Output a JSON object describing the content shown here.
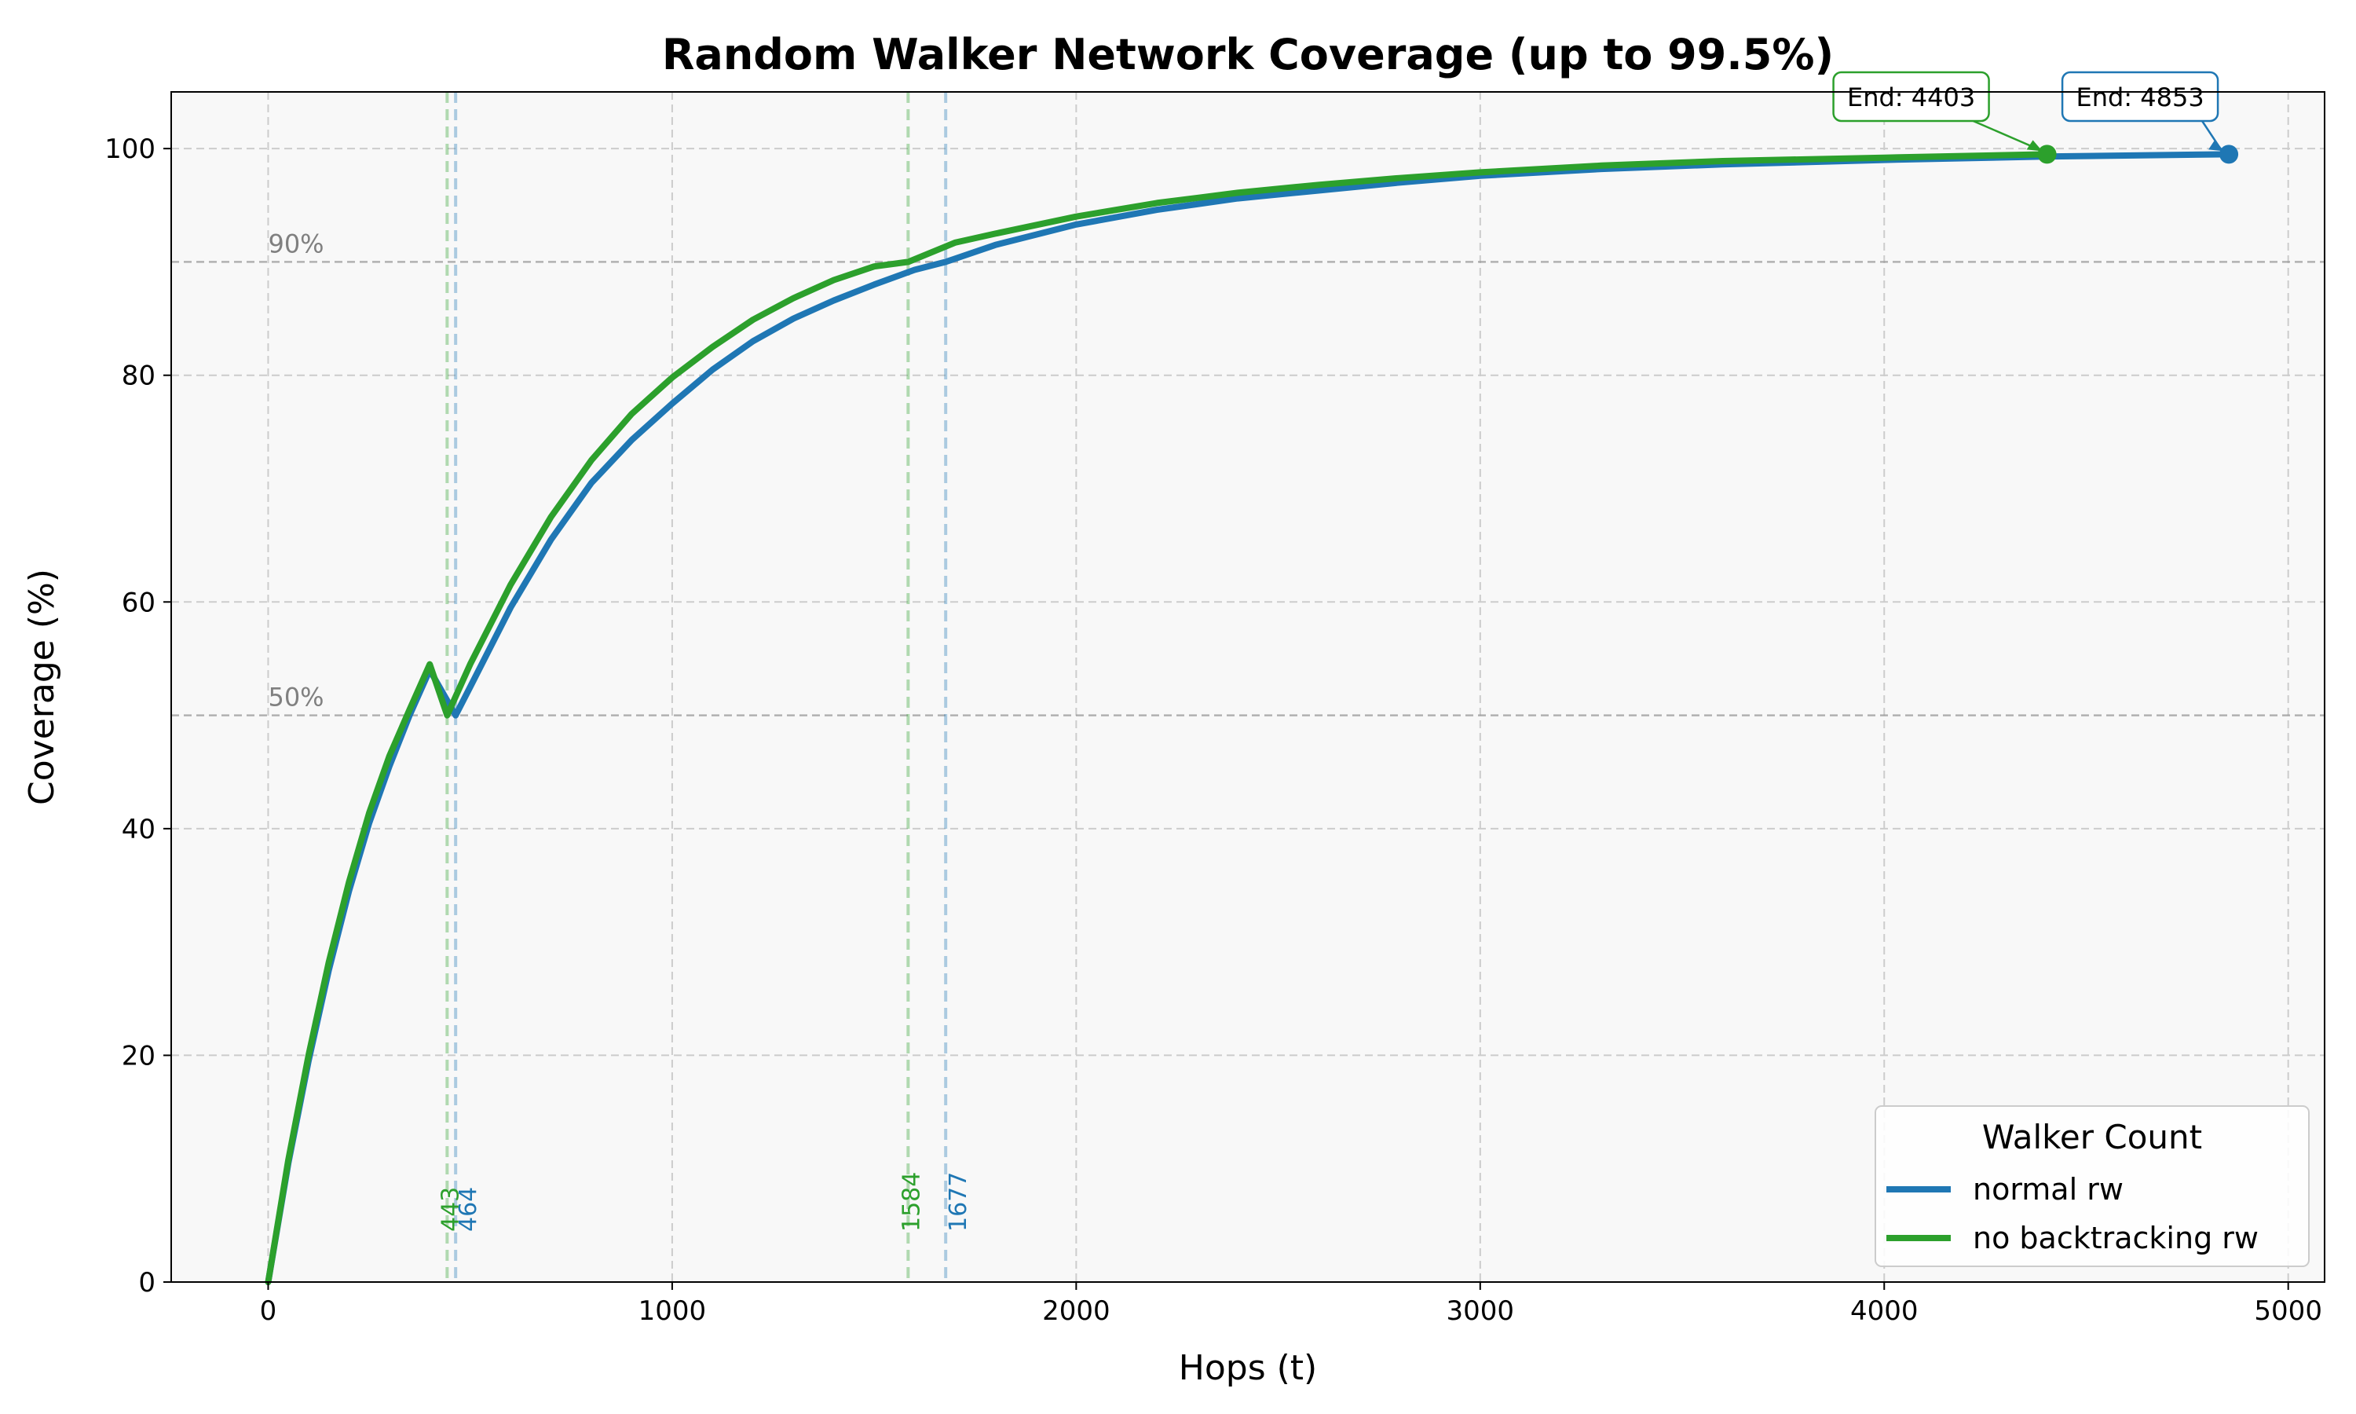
{
  "chart_data": {
    "type": "line",
    "title": "Random Walker Network Coverage (up to 99.5%)",
    "xlabel": "Hops (t)",
    "ylabel": "Coverage (%)",
    "xlim": [
      -240,
      5090
    ],
    "ylim": [
      0,
      105
    ],
    "xticks": [
      0,
      1000,
      2000,
      3000,
      4000,
      5000
    ],
    "yticks": [
      0,
      20,
      40,
      60,
      80,
      100
    ],
    "grid": true,
    "plot_background": "#f8f8f8",
    "reference_lines": [
      {
        "y": 50,
        "label": "50%"
      },
      {
        "y": 90,
        "label": "90%"
      }
    ],
    "legend": {
      "title": "Walker Count",
      "placement": "lower-right"
    },
    "series": [
      {
        "name": "normal rw",
        "color": "#1f77b4",
        "x": [
          0,
          50,
          100,
          150,
          200,
          250,
          300,
          350,
          400,
          464,
          500,
          600,
          700,
          800,
          900,
          1000,
          1100,
          1200,
          1300,
          1400,
          1500,
          1600,
          1677,
          1800,
          2000,
          2200,
          2400,
          2600,
          2800,
          3000,
          3300,
          3600,
          4000,
          4400,
          4853
        ],
        "y": [
          0,
          10.5,
          19.5,
          27.5,
          34.5,
          40.5,
          45.5,
          50,
          54,
          50,
          52.5,
          59.5,
          65.5,
          70.5,
          74.3,
          77.5,
          80.5,
          83,
          85,
          86.6,
          88,
          89.3,
          90,
          91.5,
          93.3,
          94.6,
          95.6,
          96.3,
          97,
          97.6,
          98.2,
          98.6,
          99,
          99.3,
          99.5
        ],
        "markers": {
          "thresholds": [
            464,
            1677
          ],
          "end": 4853
        }
      },
      {
        "name": "no backtracking rw",
        "color": "#2ca02c",
        "x": [
          0,
          50,
          100,
          150,
          200,
          250,
          300,
          350,
          400,
          443,
          500,
          600,
          700,
          800,
          900,
          1000,
          1100,
          1200,
          1300,
          1400,
          1500,
          1584,
          1700,
          1800,
          2000,
          2200,
          2400,
          2600,
          2800,
          3000,
          3300,
          3600,
          4000,
          4403
        ],
        "y": [
          0,
          10.8,
          20,
          28.2,
          35.3,
          41.4,
          46.4,
          50.5,
          54.5,
          50,
          54.5,
          61.5,
          67.5,
          72.5,
          76.6,
          79.8,
          82.5,
          84.9,
          86.8,
          88.4,
          89.6,
          90,
          91.7,
          92.5,
          94,
          95.2,
          96.1,
          96.8,
          97.4,
          97.9,
          98.5,
          98.9,
          99.2,
          99.5
        ],
        "markers": {
          "thresholds": [
            443,
            1584
          ],
          "end": 4403
        }
      }
    ],
    "threshold_labels": [
      {
        "series": 0,
        "x": 464,
        "text": "464"
      },
      {
        "series": 0,
        "x": 1677,
        "text": "1677"
      },
      {
        "series": 1,
        "x": 443,
        "text": "443"
      },
      {
        "series": 1,
        "x": 1584,
        "text": "1584"
      }
    ],
    "end_annotations": [
      {
        "series": 1,
        "x": 4403,
        "y": 99.5,
        "text": "End: 4403"
      },
      {
        "series": 0,
        "x": 4853,
        "y": 99.5,
        "text": "End: 4853"
      }
    ]
  }
}
